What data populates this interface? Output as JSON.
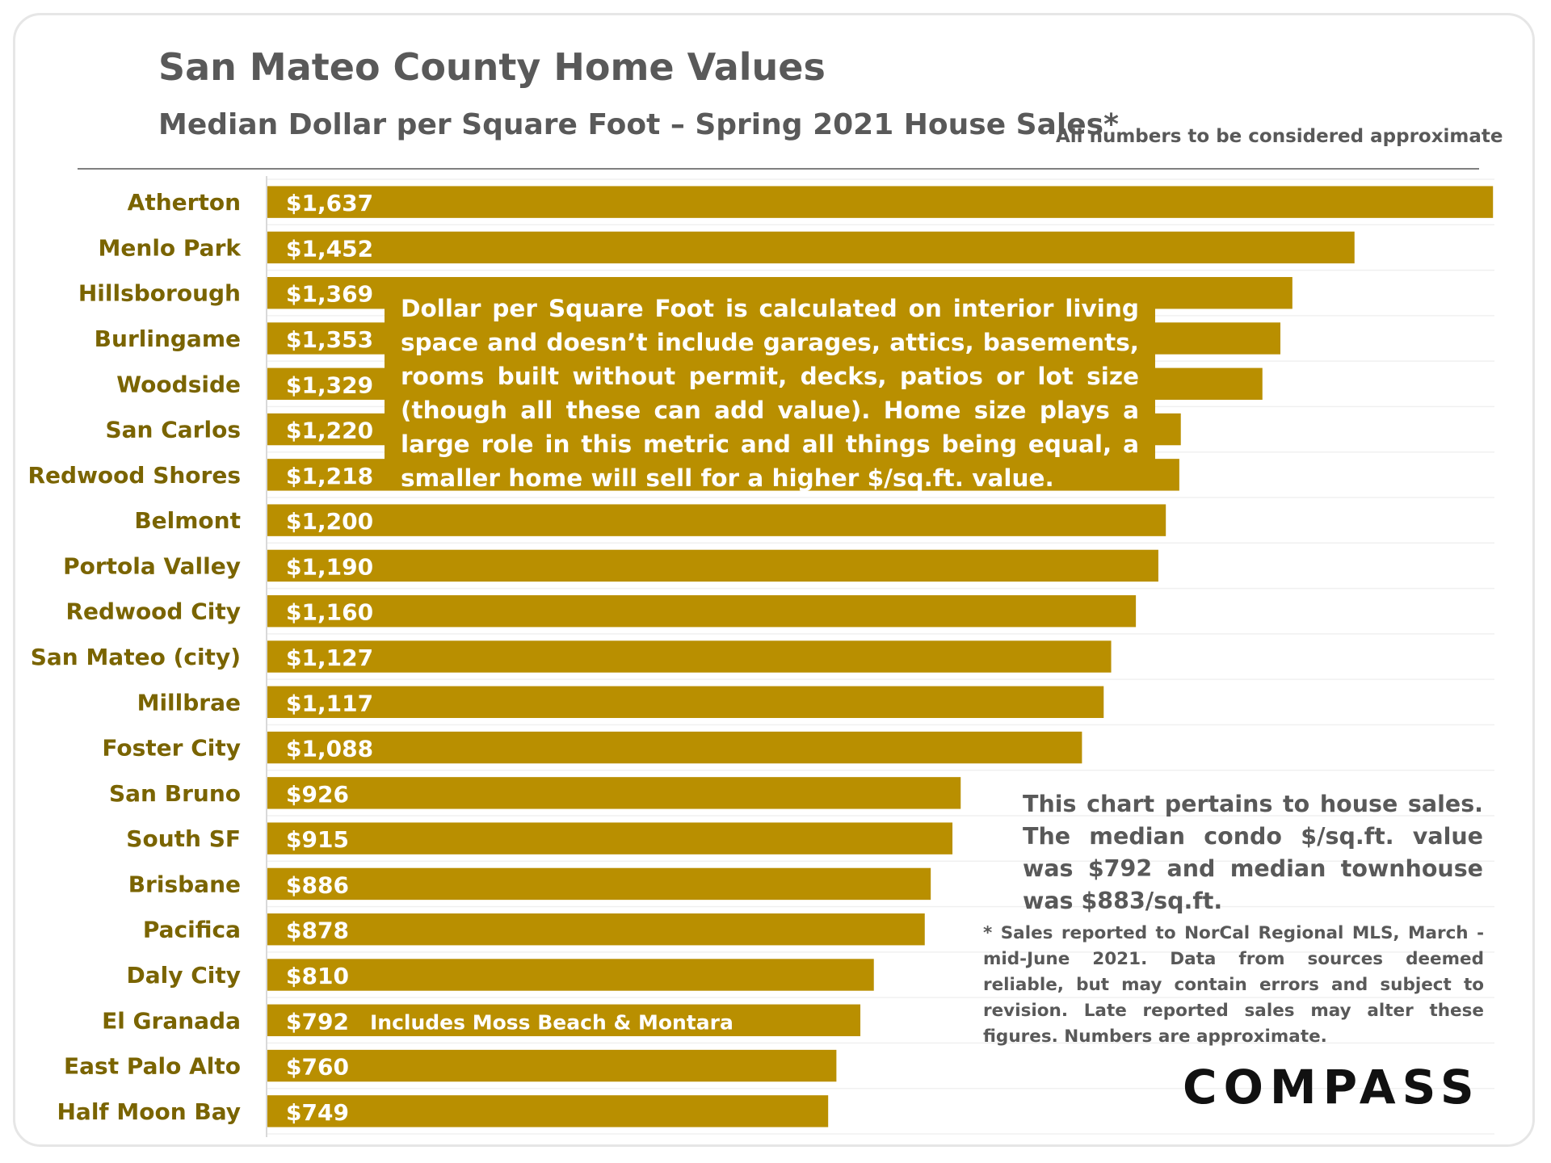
{
  "header": {
    "title": "San Mateo County Home Values",
    "subtitle": "Median Dollar per Square Foot – Spring 2021 House Sales*",
    "approx_note": "All numbers to be considered approximate"
  },
  "chart_data": {
    "type": "bar",
    "orientation": "horizontal",
    "title": "San Mateo County Home Values",
    "subtitle": "Median Dollar per Square Foot – Spring 2021 House Sales*",
    "xlabel": "",
    "ylabel": "",
    "xlim": [
      0,
      1640
    ],
    "grid": true,
    "bar_color": "#b98f00",
    "categories": [
      "Atherton",
      "Menlo Park",
      "Hillsborough",
      "Burlingame",
      "Woodside",
      "San Carlos",
      "Redwood Shores",
      "Belmont",
      "Portola Valley",
      "Redwood City",
      "San Mateo (city)",
      "Millbrae",
      "Foster City",
      "San Bruno",
      "South SF",
      "Brisbane",
      "Pacifica",
      "Daly City",
      "El Granada",
      "East Palo Alto",
      "Half Moon Bay"
    ],
    "values": [
      1637,
      1452,
      1369,
      1353,
      1329,
      1220,
      1218,
      1200,
      1190,
      1160,
      1127,
      1117,
      1088,
      926,
      915,
      886,
      878,
      810,
      792,
      760,
      749
    ],
    "value_labels": [
      "$1,637",
      "$1,452",
      "$1,369",
      "$1,353",
      "$1,329",
      "$1,220",
      "$1,218",
      "$1,200",
      "$1,190",
      "$1,160",
      "$1,127",
      "$1,117",
      "$1,088",
      "$926",
      "$915",
      "$886",
      "$878",
      "$810",
      "$792",
      "$760",
      "$749"
    ],
    "annotations": [
      {
        "category": "El Granada",
        "text": "Includes Moss Beach & Montara"
      }
    ]
  },
  "notes": {
    "callout": "Dollar per Square Foot is calculated on interior living space and doesn’t include garages, attics, basements, rooms built without permit, decks, patios or lot size (though all these can add value). Home size plays a large role in this metric and all things being equal, a smaller home will sell for a higher $/sq.ft. value.",
    "house_note": "This chart pertains to house sales. The median condo $/sq.ft. value was $792 and median townhouse was $883/sq.ft.",
    "sales_note": "* Sales reported to NorCal Regional MLS, March - mid-June 2021. Data from sources deemed reliable, but may contain errors and subject to revision. Late reported sales may alter these figures.   Numbers are approximate."
  },
  "brand": {
    "logo_text": "COMPASS"
  }
}
